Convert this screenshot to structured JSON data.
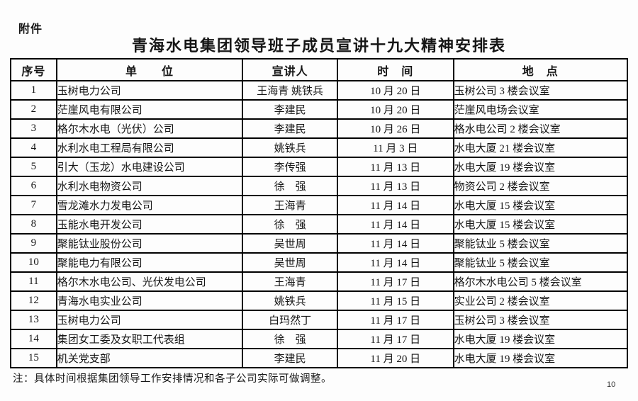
{
  "page": {
    "attachment_label": "附件",
    "title": "青海水电集团领导班子成员宣讲十九大精神安排表",
    "note": "注：具体时间根据集团领导工作安排情况和各子公司实际可做调整。",
    "page_number": "10"
  },
  "colors": {
    "paper": "#fdfdfd",
    "ink": "#161616",
    "table_border": "#000000"
  },
  "table": {
    "headers": [
      "序号",
      "单　　位",
      "宣讲人",
      "时　间",
      "地　点"
    ],
    "rows": [
      {
        "no": "1",
        "unit": "玉树电力公司",
        "speaker": "王海青 姚铁兵",
        "time": "10 月 20 日",
        "location": "玉树公司 3 楼会议室"
      },
      {
        "no": "2",
        "unit": "茫崖风电有限公司",
        "speaker": "李建民",
        "time": "10 月 20 日",
        "location": "茫崖风电场会议室"
      },
      {
        "no": "3",
        "unit": "格尔木水电（光伏）公司",
        "speaker": "李建民",
        "time": "10 月 26 日",
        "location": "格水电公司 2 楼会议室"
      },
      {
        "no": "4",
        "unit": "水利水电工程局有限公司",
        "speaker": "姚铁兵",
        "time": "11 月 3 日",
        "location": "水电大厦 21 楼会议室"
      },
      {
        "no": "5",
        "unit": "引大（玉龙）水电建设公司",
        "speaker": "李传强",
        "time": "11 月 13 日",
        "location": "水电大厦 19 楼会议室"
      },
      {
        "no": "6",
        "unit": "水利水电物资公司",
        "speaker": "徐　强",
        "time": "11 月 13 日",
        "location": "物资公司 2 楼会议室"
      },
      {
        "no": "7",
        "unit": "雪龙滩水力发电公司",
        "speaker": "王海青",
        "time": "11 月 14 日",
        "location": "水电大厦 15 楼会议室"
      },
      {
        "no": "8",
        "unit": "玉能水电开发公司",
        "speaker": "徐　强",
        "time": "11 月 14 日",
        "location": "水电大厦 15 楼会议室"
      },
      {
        "no": "9",
        "unit": "聚能钛业股份公司",
        "speaker": "吴世周",
        "time": "11 月 14 日",
        "location": "聚能钛业 5 楼会议室"
      },
      {
        "no": "10",
        "unit": "聚能电力有限公司",
        "speaker": "吴世周",
        "time": "11 月 14 日",
        "location": "聚能钛业 5 楼会议室"
      },
      {
        "no": "11",
        "unit": "格尔木水电公司、光伏发电公司",
        "speaker": "王海青",
        "time": "11 月 17 日",
        "location": "格尔木水电公司 5 楼会议室"
      },
      {
        "no": "12",
        "unit": "青海水电实业公司",
        "speaker": "姚铁兵",
        "time": "11 月 15 日",
        "location": "实业公司 2 楼会议室"
      },
      {
        "no": "13",
        "unit": "玉树电力公司",
        "speaker": "白玛然丁",
        "time": "11 月 17 日",
        "location": "玉树公司 3 楼会议室"
      },
      {
        "no": "14",
        "unit": "集团女工委及女职工代表组",
        "speaker": "徐　强",
        "time": "11 月 17 日",
        "location": "水电大厦 19 楼会议室"
      },
      {
        "no": "15",
        "unit": "机关党支部",
        "speaker": "李建民",
        "time": "11 月 20 日",
        "location": "水电大厦 19 楼会议室"
      }
    ]
  }
}
